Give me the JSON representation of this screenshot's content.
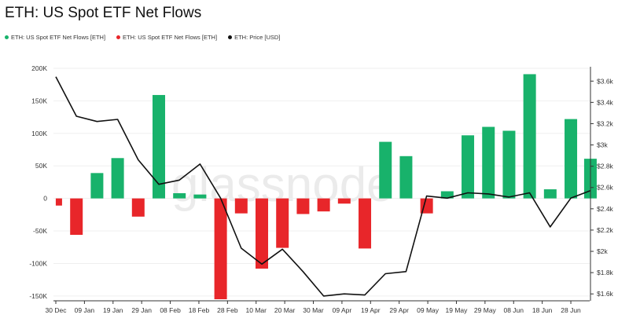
{
  "header": {
    "title": "ETH: US Spot ETF Net Flows"
  },
  "legend": [
    {
      "label": "ETH: US Spot ETF Net Flows [ETH]",
      "color": "#18b26b"
    },
    {
      "label": "ETH: US Spot ETF Net Flows [ETH]",
      "color": "#e8262a"
    },
    {
      "label": "ETH: Price [USD]",
      "color": "#111111"
    }
  ],
  "watermark": "glassnode",
  "chart_data": {
    "type": "bar",
    "title": "ETH: US Spot ETF Net Flows",
    "colors": {
      "positive": "#18b26b",
      "negative": "#e8262a",
      "price": "#111111"
    },
    "y_left": {
      "ylim": [
        -155000,
        200000
      ],
      "ticks": [
        200000,
        150000,
        100000,
        50000,
        0,
        -50000,
        -100000,
        -150000
      ],
      "tick_labels": [
        "200K",
        "150K",
        "100K",
        "50K",
        "0",
        "-50K",
        "-100K",
        "-150K"
      ]
    },
    "y_right": {
      "ylim": [
        1550,
        3720
      ],
      "ticks": [
        3600,
        3400,
        3200,
        3000,
        2800,
        2600,
        2400,
        2200,
        2000,
        1800,
        1600
      ],
      "tick_labels": [
        "$3.6k",
        "$3.4k",
        "$3.2k",
        "$3k",
        "$2.8k",
        "$2.6k",
        "$2.4k",
        "$2.2k",
        "$2k",
        "$1.8k",
        "$1.6k"
      ]
    },
    "x_ticks": [
      "30 Dec",
      "09 Jan",
      "19 Jan",
      "29 Jan",
      "08 Feb",
      "18 Feb",
      "28 Feb",
      "10 Mar",
      "20 Mar",
      "30 Mar",
      "09 Apr",
      "19 Apr",
      "29 Apr",
      "09 May",
      "19 May",
      "29 May",
      "08 Jun",
      "18 Jun",
      "28 Jun"
    ],
    "x_domain": [
      0,
      25.8
    ],
    "series": [
      {
        "name": "ETH: US Spot ETF Net Flows [ETH]",
        "type": "bar",
        "x": [
          0.15,
          1,
          2,
          3,
          4,
          5,
          6,
          7,
          8,
          9,
          10,
          11,
          12,
          13,
          14,
          15,
          16,
          17,
          18,
          19,
          20,
          21,
          22,
          23,
          24,
          25
        ],
        "values": [
          -11000,
          -56000,
          39000,
          62000,
          -28000,
          159000,
          8000,
          6000,
          -155000,
          -23000,
          -108000,
          -76000,
          -24000,
          -20000,
          -8000,
          -77000,
          87000,
          65000,
          -23000,
          11000,
          97000,
          110000,
          104000,
          191000,
          14000,
          122000
        ],
        "last_value": 61000
      },
      {
        "name": "ETH: Price [USD]",
        "type": "line",
        "x": [
          0,
          1,
          2,
          3,
          4,
          5,
          6,
          7,
          8,
          9,
          10,
          11,
          12,
          13,
          14,
          15,
          16,
          17,
          18,
          19,
          20,
          21,
          22,
          23,
          24,
          25
        ],
        "values": [
          3640,
          3270,
          3220,
          3240,
          2860,
          2630,
          2670,
          2820,
          2500,
          2030,
          1880,
          2020,
          1810,
          1580,
          1600,
          1590,
          1790,
          1810,
          2520,
          2500,
          2550,
          2540,
          2510,
          2550,
          2230,
          2500
        ],
        "last_value": 2570
      }
    ]
  }
}
